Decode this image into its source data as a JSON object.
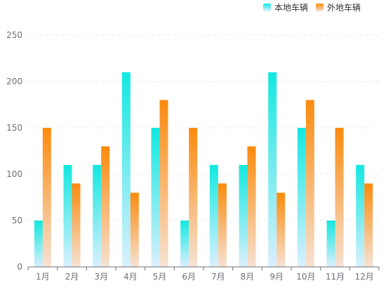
{
  "chart_data": {
    "type": "bar",
    "categories": [
      "1月",
      "2月",
      "3月",
      "4月",
      "5月",
      "6月",
      "7月",
      "8月",
      "9月",
      "10月",
      "11月",
      "12月"
    ],
    "series": [
      {
        "name": "本地车辆",
        "values": [
          50,
          110,
          110,
          210,
          150,
          50,
          110,
          110,
          210,
          150,
          50,
          110
        ],
        "color_top": "#12e8e0",
        "color_bottom": "#dbeffd"
      },
      {
        "name": "外地车辆",
        "values": [
          150,
          90,
          130,
          80,
          180,
          150,
          90,
          130,
          80,
          180,
          150,
          90
        ],
        "color_top": "#fb8a0d",
        "color_bottom": "#f6e2d3"
      }
    ],
    "y_ticks": [
      0,
      50,
      100,
      150,
      200,
      250
    ],
    "ylim": [
      0,
      250
    ],
    "grid": "horizontal dashed",
    "legend_position": "top-right",
    "axis_color": "#6e7079",
    "grid_color": "#e8e8e8"
  }
}
